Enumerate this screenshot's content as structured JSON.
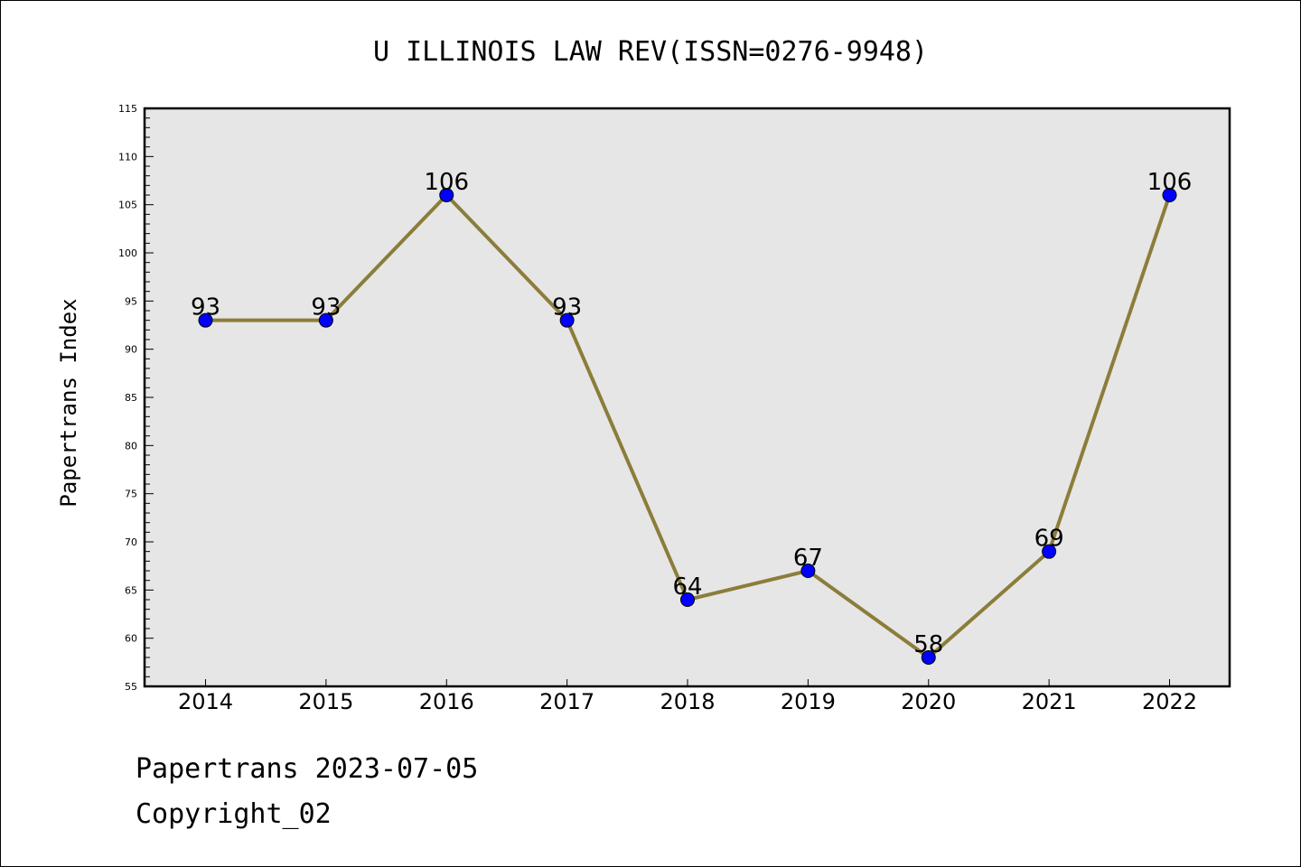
{
  "chart_data": {
    "type": "line",
    "title": "U ILLINOIS LAW REV(ISSN=0276-9948)",
    "xlabel": "",
    "ylabel": "Papertrans Index",
    "categories": [
      "2014",
      "2015",
      "2016",
      "2017",
      "2018",
      "2019",
      "2020",
      "2021",
      "2022"
    ],
    "series": [
      {
        "values": [
          93,
          93,
          106,
          93,
          64,
          67,
          58,
          69,
          106
        ]
      }
    ],
    "data_labels": [
      "93",
      "93",
      "106",
      "93",
      "64",
      "67",
      "58",
      "69",
      "106"
    ],
    "ylim": [
      55,
      115
    ],
    "yticks": [
      55,
      60,
      65,
      70,
      75,
      80,
      85,
      90,
      95,
      100,
      105,
      110,
      115
    ],
    "grid": false,
    "legend": "none",
    "colors": {
      "line": "#8b7d3a",
      "marker": "#0000ff",
      "plot_background": "#e6e6e6"
    }
  },
  "footer": {
    "line1": "Papertrans 2023-07-05",
    "line2": "Copyright_02"
  }
}
